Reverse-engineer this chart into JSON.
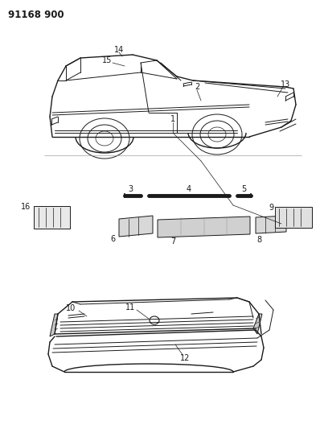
{
  "title": "91168 900",
  "bg_color": "#ffffff",
  "line_color": "#1a1a1a",
  "fig_width": 3.98,
  "fig_height": 5.33,
  "dpi": 100
}
